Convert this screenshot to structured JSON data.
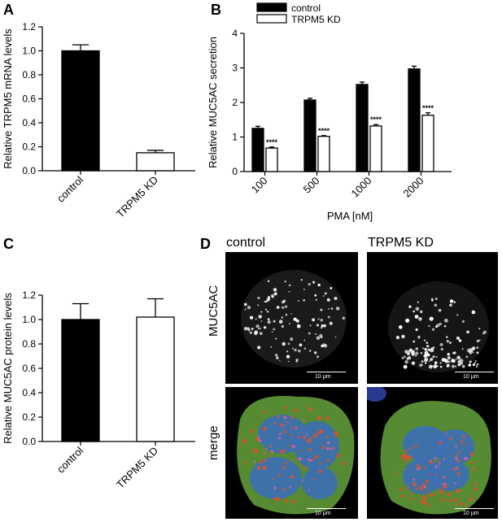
{
  "panels": {
    "A": {
      "letter": "A"
    },
    "B": {
      "letter": "B"
    },
    "C": {
      "letter": "C"
    },
    "D": {
      "letter": "D"
    }
  },
  "chart_data": [
    {
      "id": "A",
      "type": "bar",
      "categories": [
        "control",
        "TRPM5 KD"
      ],
      "values": [
        1.0,
        0.15
      ],
      "errors": [
        0.05,
        0.02
      ],
      "fills": [
        "#000000",
        "#ffffff"
      ],
      "ylabel": "Relative TRPM5 mRNA levels",
      "ylim": [
        0,
        1.2
      ],
      "yticks": [
        "0.0",
        "0.2",
        "0.4",
        "0.6",
        "0.8",
        "1.0",
        "1.2"
      ]
    },
    {
      "id": "B",
      "type": "bar",
      "categories": [
        "100",
        "500",
        "1000",
        "2000"
      ],
      "series": [
        {
          "name": "control",
          "values": [
            1.25,
            2.07,
            2.52,
            2.97
          ],
          "errors": [
            0.06,
            0.05,
            0.07,
            0.08
          ],
          "fill": "#000000"
        },
        {
          "name": "TRPM5 KD",
          "values": [
            0.68,
            1.02,
            1.32,
            1.63
          ],
          "errors": [
            0.03,
            0.02,
            0.04,
            0.07
          ],
          "fill": "#ffffff"
        }
      ],
      "annotations": [
        "****",
        "****",
        "****",
        "****"
      ],
      "ylabel": "Relative MUC5AC secretion",
      "xlabel": "PMA [nM]",
      "ylim": [
        0,
        4
      ],
      "yticks": [
        "0",
        "1",
        "2",
        "3",
        "4"
      ],
      "legend": "top-left"
    },
    {
      "id": "C",
      "type": "bar",
      "categories": [
        "control",
        "TRPM5 KD"
      ],
      "values": [
        1.0,
        1.02
      ],
      "errors": [
        0.13,
        0.15
      ],
      "fills": [
        "#000000",
        "#ffffff"
      ],
      "ylabel": "Relative MUC5AC protein levels",
      "ylim": [
        0,
        1.2
      ],
      "yticks": [
        "0.0",
        "0.2",
        "0.4",
        "0.6",
        "0.8",
        "1.0",
        "1.2"
      ]
    }
  ],
  "microscopy": {
    "columns": [
      "control",
      "TRPM5 KD"
    ],
    "rows": [
      "MUC5AC",
      "merge"
    ],
    "scale_label": "10 μm"
  }
}
